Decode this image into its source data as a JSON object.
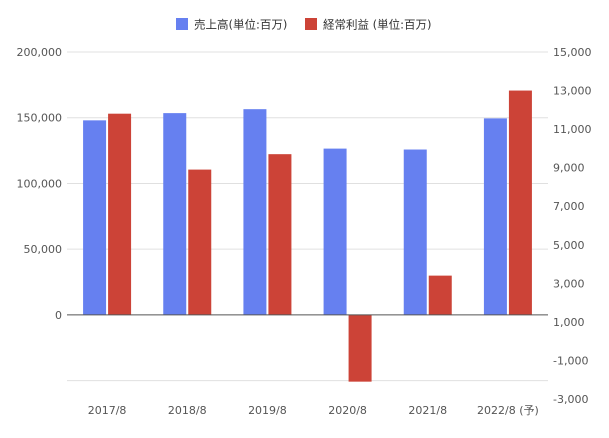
{
  "chart_data": {
    "type": "bar",
    "categories": [
      "2017/8",
      "2018/8",
      "2019/8",
      "2020/8",
      "2021/8",
      "2022/8 (予)"
    ],
    "series": [
      {
        "name": "売上高(単位:百万)",
        "axis": "left",
        "color": "#6680f0",
        "values": [
          148000,
          153500,
          156500,
          126500,
          125800,
          149500
        ]
      },
      {
        "name": "経常利益 (単位:百万)",
        "axis": "right",
        "color": "#cc4337",
        "values": [
          11800,
          8900,
          9700,
          -2100,
          3400,
          13000
        ]
      }
    ],
    "y_left": {
      "ylim": [
        -64000,
        200000
      ],
      "ticks": [
        0,
        50000,
        100000,
        150000,
        200000
      ],
      "tick_labels": [
        "0",
        "50,000",
        "100,000",
        "150,000",
        "200,000"
      ]
    },
    "y_right": {
      "ylim": [
        -3000,
        15000
      ],
      "ticks": [
        -3000,
        -1000,
        1000,
        3000,
        5000,
        7000,
        9000,
        11000,
        13000,
        15000
      ],
      "tick_labels": [
        "-3,000",
        "-1,000",
        "1,000",
        "3,000",
        "5,000",
        "7,000",
        "9,000",
        "11,000",
        "13,000",
        "15,000"
      ]
    },
    "legend_position": "top",
    "grid": true
  }
}
